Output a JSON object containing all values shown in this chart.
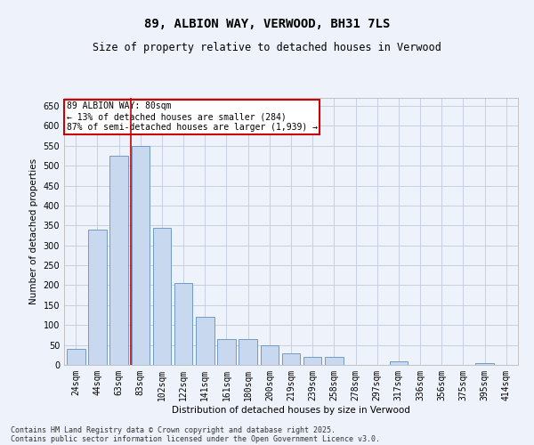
{
  "title": "89, ALBION WAY, VERWOOD, BH31 7LS",
  "subtitle": "Size of property relative to detached houses in Verwood",
  "xlabel": "Distribution of detached houses by size in Verwood",
  "ylabel": "Number of detached properties",
  "bar_color": "#c8d8ee",
  "bar_edge_color": "#6090c0",
  "background_color": "#eef2fa",
  "grid_color": "#c8d0e0",
  "categories": [
    "24sqm",
    "44sqm",
    "63sqm",
    "83sqm",
    "102sqm",
    "122sqm",
    "141sqm",
    "161sqm",
    "180sqm",
    "200sqm",
    "219sqm",
    "239sqm",
    "258sqm",
    "278sqm",
    "297sqm",
    "317sqm",
    "336sqm",
    "356sqm",
    "375sqm",
    "395sqm",
    "414sqm"
  ],
  "values": [
    40,
    340,
    525,
    550,
    345,
    205,
    120,
    65,
    65,
    50,
    30,
    20,
    20,
    0,
    0,
    10,
    0,
    0,
    0,
    5,
    0
  ],
  "annotation_title": "89 ALBION WAY: 80sqm",
  "annotation_line1": "← 13% of detached houses are smaller (284)",
  "annotation_line2": "87% of semi-detached houses are larger (1,939) →",
  "vline_color": "#cc0000",
  "annotation_box_color": "#ffffff",
  "annotation_box_edge": "#cc0000",
  "ylim": [
    0,
    670
  ],
  "yticks": [
    0,
    50,
    100,
    150,
    200,
    250,
    300,
    350,
    400,
    450,
    500,
    550,
    600,
    650
  ],
  "vline_pos": 2.57,
  "footnote_line1": "Contains HM Land Registry data © Crown copyright and database right 2025.",
  "footnote_line2": "Contains public sector information licensed under the Open Government Licence v3.0."
}
